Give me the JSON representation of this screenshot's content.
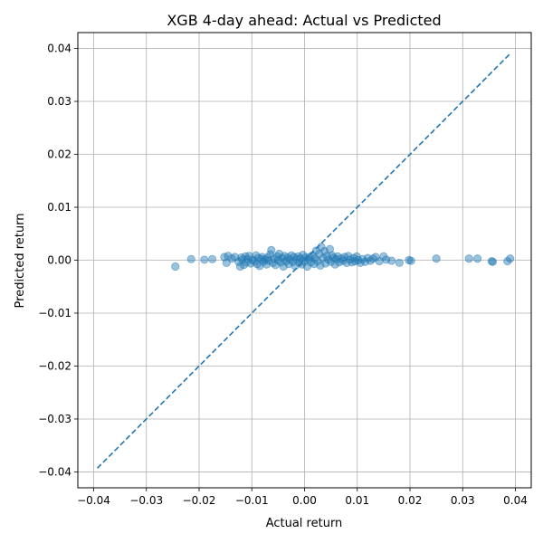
{
  "chart_data": {
    "type": "scatter",
    "title": "XGB 4-day ahead: Actual vs Predicted",
    "xlabel": "Actual return",
    "ylabel": "Predicted return",
    "xlim": [
      -0.043,
      0.043
    ],
    "ylim": [
      -0.043,
      0.043
    ],
    "x_ticks": [
      -0.04,
      -0.03,
      -0.02,
      -0.01,
      0.0,
      0.01,
      0.02,
      0.03,
      0.04
    ],
    "x_tick_labels": [
      "−0.04",
      "−0.03",
      "−0.02",
      "−0.01",
      "0.00",
      "0.01",
      "0.02",
      "0.03",
      "0.04"
    ],
    "y_ticks": [
      -0.04,
      -0.03,
      -0.02,
      -0.01,
      0.0,
      0.01,
      0.02,
      0.03,
      0.04
    ],
    "y_tick_labels": [
      "−0.04",
      "−0.03",
      "−0.02",
      "−0.01",
      "0.00",
      "0.01",
      "0.02",
      "0.03",
      "0.04"
    ],
    "grid": true,
    "point_color": "#1f77b4",
    "line_color": "#1f77b4",
    "reference_line": {
      "style": "dashed",
      "from": [
        -0.0393,
        -0.0393
      ],
      "to": [
        0.0392,
        0.0392
      ]
    },
    "points": [
      [
        -0.0245,
        -0.0012
      ],
      [
        -0.0215,
        0.0002
      ],
      [
        -0.019,
        0.0001
      ],
      [
        -0.0175,
        0.0002
      ],
      [
        -0.0152,
        0.0006
      ],
      [
        -0.0148,
        -0.0005
      ],
      [
        -0.0145,
        0.0008
      ],
      [
        -0.0138,
        0.0003
      ],
      [
        -0.0132,
        0.0006
      ],
      [
        -0.0125,
        -0.0003
      ],
      [
        -0.0122,
        -0.0012
      ],
      [
        -0.012,
        0.0005
      ],
      [
        -0.0118,
        0.0001
      ],
      [
        -0.0115,
        -0.0009
      ],
      [
        -0.0112,
        0.0007
      ],
      [
        -0.011,
        -0.0004
      ],
      [
        -0.0108,
        0.0002
      ],
      [
        -0.0105,
        0.0008
      ],
      [
        -0.0102,
        -0.0006
      ],
      [
        -0.0098,
        0.0001
      ],
      [
        -0.0095,
        -0.0002
      ],
      [
        -0.0092,
        0.0009
      ],
      [
        -0.009,
        -0.0007
      ],
      [
        -0.0088,
        0.0004
      ],
      [
        -0.0085,
        -0.0011
      ],
      [
        -0.0082,
        0.0002
      ],
      [
        -0.008,
        0.0006
      ],
      [
        -0.0078,
        -0.0003
      ],
      [
        -0.0075,
        0.0001
      ],
      [
        -0.0072,
        -0.0008
      ],
      [
        -0.007,
        0.0005
      ],
      [
        -0.0068,
        -0.0001
      ],
      [
        -0.0065,
        0.0011
      ],
      [
        -0.0063,
        0.0019
      ],
      [
        -0.006,
        -0.0005
      ],
      [
        -0.0058,
        0.0003
      ],
      [
        -0.0055,
        -0.0009
      ],
      [
        -0.0052,
        0.0007
      ],
      [
        -0.005,
        0.0
      ],
      [
        -0.0048,
        0.0012
      ],
      [
        -0.0045,
        -0.0004
      ],
      [
        -0.0042,
        0.0004
      ],
      [
        -0.004,
        -0.0012
      ],
      [
        -0.0038,
        0.0008
      ],
      [
        -0.0035,
        -0.0002
      ],
      [
        -0.0032,
        0.0005
      ],
      [
        -0.003,
        -0.0007
      ],
      [
        -0.0028,
        0.0001
      ],
      [
        -0.0025,
        0.0009
      ],
      [
        -0.0022,
        -0.0003
      ],
      [
        -0.002,
        0.0006
      ],
      [
        -0.0018,
        -0.0011
      ],
      [
        -0.0015,
        0.0002
      ],
      [
        -0.0012,
        0.0007
      ],
      [
        -0.001,
        -0.0005
      ],
      [
        -0.0008,
        0.0003
      ],
      [
        -0.0005,
        -0.0008
      ],
      [
        -0.0003,
        0.001
      ],
      [
        0.0,
        -0.0002
      ],
      [
        0.0002,
        0.0005
      ],
      [
        0.0005,
        -0.0012
      ],
      [
        0.0008,
        0.0002
      ],
      [
        0.001,
        0.0006
      ],
      [
        0.0012,
        -0.0004
      ],
      [
        0.0015,
        0.0009
      ],
      [
        0.0018,
        -0.0007
      ],
      [
        0.002,
        0.0003
      ],
      [
        0.0022,
        0.0018
      ],
      [
        0.0025,
        -0.0002
      ],
      [
        0.0028,
        0.0012
      ],
      [
        0.003,
        -0.001
      ],
      [
        0.0032,
        0.0025
      ],
      [
        0.0035,
        0.0004
      ],
      [
        0.0038,
        0.0017
      ],
      [
        0.004,
        -0.0006
      ],
      [
        0.0042,
        0.0008
      ],
      [
        0.0045,
        0.0001
      ],
      [
        0.0048,
        0.0021
      ],
      [
        0.005,
        -0.0003
      ],
      [
        0.0052,
        0.0009
      ],
      [
        0.0055,
        0.0005
      ],
      [
        0.0058,
        -0.0008
      ],
      [
        0.006,
        0.0002
      ],
      [
        0.0063,
        0.0007
      ],
      [
        0.0066,
        -0.0004
      ],
      [
        0.007,
        0.0003
      ],
      [
        0.0073,
        -0.0001
      ],
      [
        0.0076,
        0.0006
      ],
      [
        0.008,
        -0.0005
      ],
      [
        0.0083,
        0.0008
      ],
      [
        0.0086,
        0.0001
      ],
      [
        0.009,
        -0.0004
      ],
      [
        0.0093,
        0.0004
      ],
      [
        0.0096,
        -0.0002
      ],
      [
        0.0099,
        0.0007
      ],
      [
        0.0102,
        0.0
      ],
      [
        0.0106,
        -0.0005
      ],
      [
        0.011,
        0.0002
      ],
      [
        0.0115,
        -0.0003
      ],
      [
        0.012,
        0.0004
      ],
      [
        0.0125,
        -0.0001
      ],
      [
        0.013,
        0.0003
      ],
      [
        0.0135,
        0.0006
      ],
      [
        0.0142,
        -0.0002
      ],
      [
        0.015,
        0.0007
      ],
      [
        0.0155,
        0.0001
      ],
      [
        0.0165,
        -0.0001
      ],
      [
        0.018,
        -0.0005
      ],
      [
        0.0198,
        0.0
      ],
      [
        0.0202,
        -0.0001
      ],
      [
        0.025,
        0.0003
      ],
      [
        0.0312,
        0.0003
      ],
      [
        0.0328,
        0.0003
      ],
      [
        0.0355,
        -0.0002
      ],
      [
        0.0357,
        -0.0003
      ],
      [
        0.0385,
        -0.0002
      ],
      [
        0.039,
        0.0003
      ]
    ]
  }
}
